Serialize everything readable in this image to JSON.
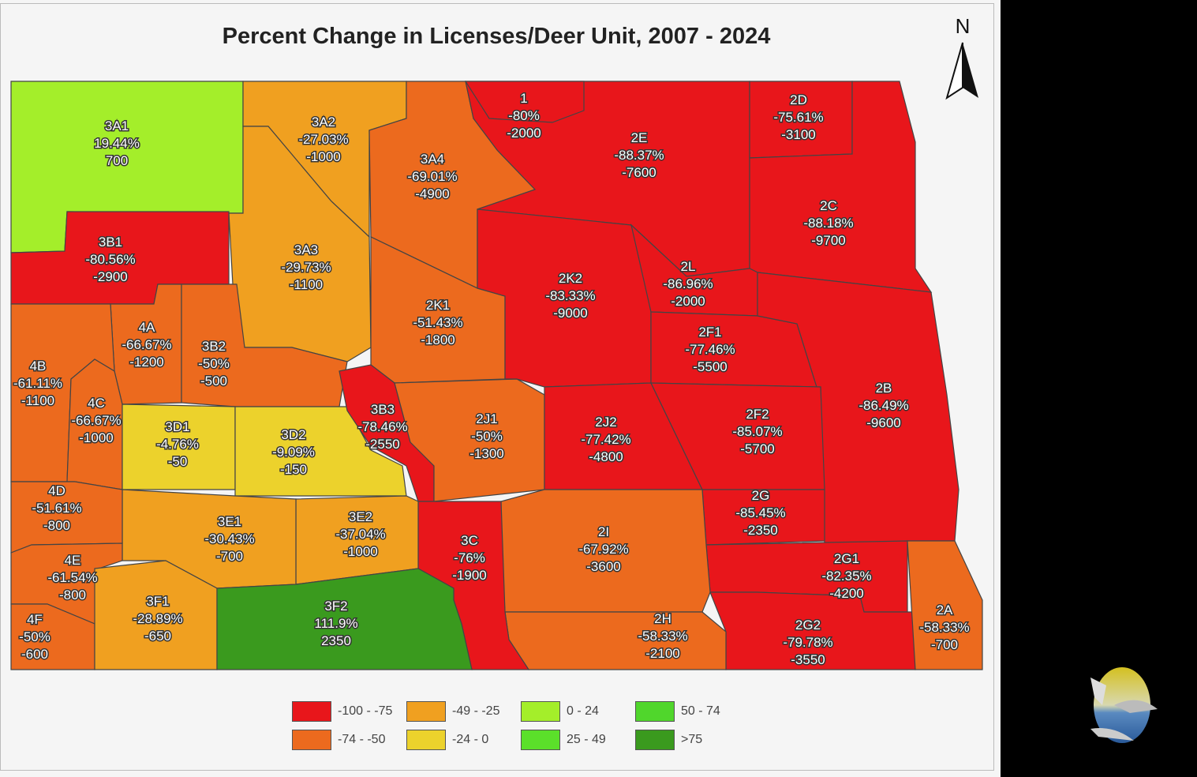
{
  "title": "Percent Change in Licenses/Deer Unit, 2007 - 2024",
  "north_label": "N",
  "colors": {
    "r1": "#e8161b",
    "r2": "#ec6a1e",
    "r3": "#f0a020",
    "r4": "#ecd22c",
    "r5": "#a4ee2a",
    "r6": "#5be02a",
    "r7": "#50d62c",
    "r8": "#3a9a1e"
  },
  "legend": [
    {
      "label": "-100 - -75",
      "key": "r1"
    },
    {
      "label": "-49 - -25",
      "key": "r3"
    },
    {
      "label": "0 - 24",
      "key": "r5"
    },
    {
      "label": "50 - 74",
      "key": "r7"
    },
    {
      "label": "-74 - -50",
      "key": "r2"
    },
    {
      "label": "-24 - 0",
      "key": "r4"
    },
    {
      "label": "25 - 49",
      "key": "r6"
    },
    {
      "label": ">75",
      "key": "r8"
    }
  ],
  "units": [
    {
      "id": "3A1",
      "pct": "19.44%",
      "change": "700",
      "key": "r5"
    },
    {
      "id": "3A2",
      "pct": "-27.03%",
      "change": "-1000",
      "key": "r3"
    },
    {
      "id": "3A3",
      "pct": "-29.73%",
      "change": "-1100",
      "key": "r3"
    },
    {
      "id": "3A4",
      "pct": "-69.01%",
      "change": "-4900",
      "key": "r2"
    },
    {
      "id": "2K1",
      "pct": "-51.43%",
      "change": "-1800",
      "key": "r2"
    },
    {
      "id": "3B1",
      "pct": "-80.56%",
      "change": "-2900",
      "key": "r1"
    },
    {
      "id": "4A",
      "pct": "-66.67%",
      "change": "-1200",
      "key": "r2"
    },
    {
      "id": "3B2",
      "pct": "-50%",
      "change": "-500",
      "key": "r2"
    },
    {
      "id": "4B",
      "pct": "-61.11%",
      "change": "-1100",
      "key": "r2"
    },
    {
      "id": "4C",
      "pct": "-66.67%",
      "change": "-1000",
      "key": "r2"
    },
    {
      "id": "3D1",
      "pct": "-4.76%",
      "change": "-50",
      "key": "r4"
    },
    {
      "id": "3D2",
      "pct": "-9.09%",
      "change": "-150",
      "key": "r4"
    },
    {
      "id": "3B3",
      "pct": "-78.46%",
      "change": "-2550",
      "key": "r1"
    },
    {
      "id": "2J1",
      "pct": "-50%",
      "change": "-1300",
      "key": "r2"
    },
    {
      "id": "2E",
      "pct": "-88.37%",
      "change": "-7600",
      "key": "r1"
    },
    {
      "id": "1",
      "pct": "-80%",
      "change": "-2000",
      "key": "r1"
    },
    {
      "id": "2D",
      "pct": "-75.61%",
      "change": "-3100",
      "key": "r1"
    },
    {
      "id": "2C",
      "pct": "-88.18%",
      "change": "-9700",
      "key": "r1"
    },
    {
      "id": "2K2",
      "pct": "-83.33%",
      "change": "-9000",
      "key": "r1"
    },
    {
      "id": "2L",
      "pct": "-86.96%",
      "change": "-2000",
      "key": "r1"
    },
    {
      "id": "2F1",
      "pct": "-77.46%",
      "change": "-5500",
      "key": "r1"
    },
    {
      "id": "2B",
      "pct": "-86.49%",
      "change": "-9600",
      "key": "r1"
    },
    {
      "id": "2J2",
      "pct": "-77.42%",
      "change": "-4800",
      "key": "r1"
    },
    {
      "id": "2F2",
      "pct": "-85.07%",
      "change": "-5700",
      "key": "r1"
    },
    {
      "id": "2G",
      "pct": "-85.45%",
      "change": "-2350",
      "key": "r1"
    },
    {
      "id": "2G1",
      "pct": "-82.35%",
      "change": "-4200",
      "key": "r1"
    },
    {
      "id": "2G2",
      "pct": "-79.78%",
      "change": "-3550",
      "key": "r1"
    },
    {
      "id": "2A",
      "pct": "-58.33%",
      "change": "-700",
      "key": "r2"
    },
    {
      "id": "2I",
      "pct": "-67.92%",
      "change": "-3600",
      "key": "r2"
    },
    {
      "id": "2H",
      "pct": "-58.33%",
      "change": "-2100",
      "key": "r2"
    },
    {
      "id": "3C",
      "pct": "-76%",
      "change": "-1900",
      "key": "r1"
    },
    {
      "id": "3E2",
      "pct": "-37.04%",
      "change": "-1000",
      "key": "r3"
    },
    {
      "id": "3E1",
      "pct": "-30.43%",
      "change": "-700",
      "key": "r3"
    },
    {
      "id": "4D",
      "pct": "-51.61%",
      "change": "-800",
      "key": "r2"
    },
    {
      "id": "4E",
      "pct": "-61.54%",
      "change": "-800",
      "key": "r2"
    },
    {
      "id": "4F",
      "pct": "-50%",
      "change": "-600",
      "key": "r2"
    },
    {
      "id": "3F1",
      "pct": "-28.89%",
      "change": "-650",
      "key": "r3"
    },
    {
      "id": "3F2",
      "pct": "111.9%",
      "change": "2350",
      "key": "r8"
    }
  ]
}
